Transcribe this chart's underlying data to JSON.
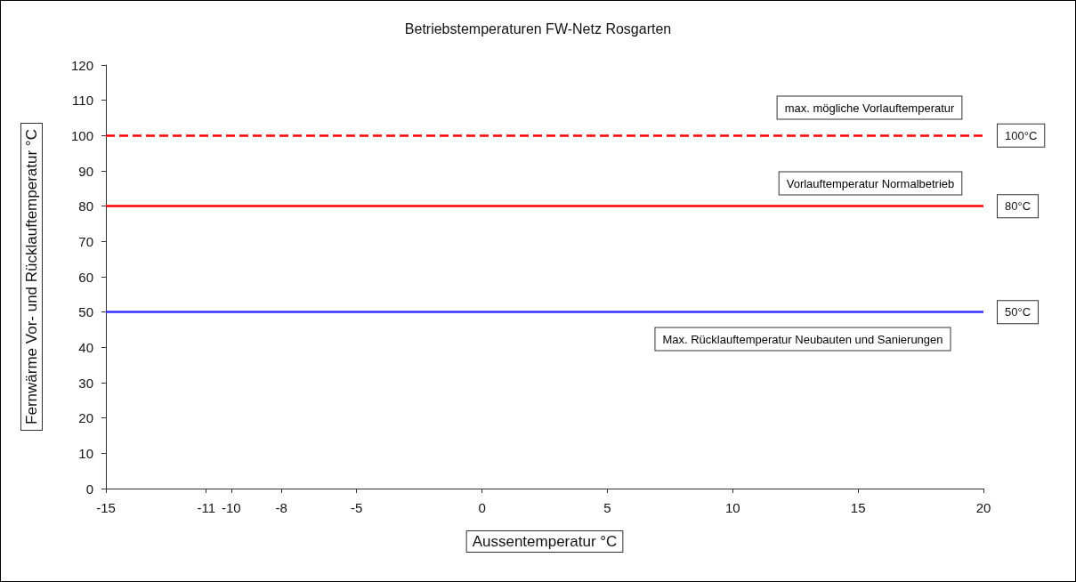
{
  "chart_data": {
    "type": "line",
    "title": "Betriebstemperaturen FW-Netz Rosgarten",
    "xlabel": "Aussentemperatur °C",
    "ylabel": "Fernwärme Vor- und Rücklauftemperatur °C",
    "xlim": [
      -15,
      20
    ],
    "xticks": [
      -15,
      -11,
      -10,
      -8,
      -5,
      0,
      5,
      10,
      15,
      20
    ],
    "ylim": [
      0,
      120
    ],
    "yticks": [
      0,
      10,
      20,
      30,
      40,
      50,
      60,
      70,
      80,
      90,
      100,
      110,
      120
    ],
    "ref_lines": [
      {
        "axis": "y",
        "value": 100,
        "label": "100°C",
        "color": "#ff0000",
        "line_style": "dashed"
      },
      {
        "axis": "y",
        "value": 80,
        "label": "80°C",
        "color": "#ff0000",
        "line_style": "solid"
      },
      {
        "axis": "y",
        "value": 50,
        "label": "50°C",
        "color": "#3333ff",
        "line_style": "solid"
      }
    ],
    "annotations": [
      "max. mögliche Vorlauftemperatur",
      "Vorlauftemperatur Normalbetrieb",
      "Max. Rücklauftemperatur Neubauten und Sanierungen"
    ]
  }
}
